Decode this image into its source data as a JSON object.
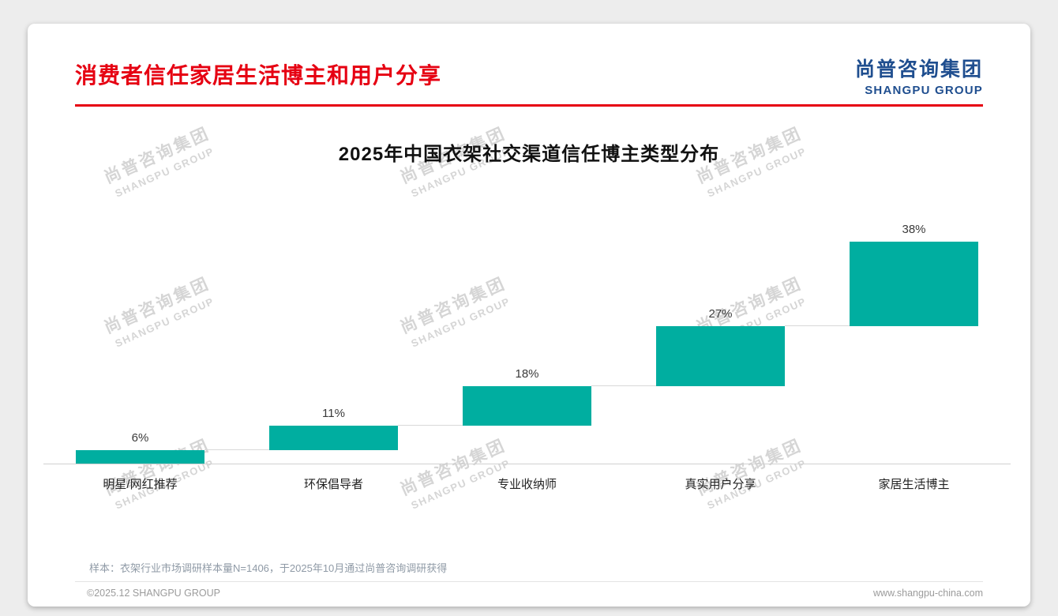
{
  "page": {
    "title": "消费者信任家居生活博主和用户分享",
    "logo": {
      "cn": "尚普咨询集团",
      "en": "SHANGPU GROUP"
    },
    "watermark": {
      "cn": "尚普咨询集团",
      "en": "SHANGPU GROUP"
    },
    "footnote": "样本：衣架行业市场调研样本量N=1406，于2025年10月通过尚普咨询调研获得",
    "footer_left": "©2025.12 SHANGPU GROUP",
    "footer_right": "www.shangpu-china.com"
  },
  "chart_data": {
    "type": "bar",
    "subtype": "ascending-waterfall-stacked-steps",
    "title": "2025年中国衣架社交渠道信任博主类型分布",
    "categories": [
      "明星/网红推荐",
      "环保倡导者",
      "专业收纳师",
      "真实用户分享",
      "家居生活博主"
    ],
    "values": [
      6,
      11,
      18,
      27,
      38
    ],
    "labels": [
      "6%",
      "11%",
      "18%",
      "27%",
      "38%"
    ],
    "bar_color": "#00AEA0",
    "connector_color": "#d8d8d8",
    "ylim": [
      0,
      100
    ],
    "grid": false,
    "legend": "none",
    "xlabel": "",
    "ylabel": ""
  }
}
